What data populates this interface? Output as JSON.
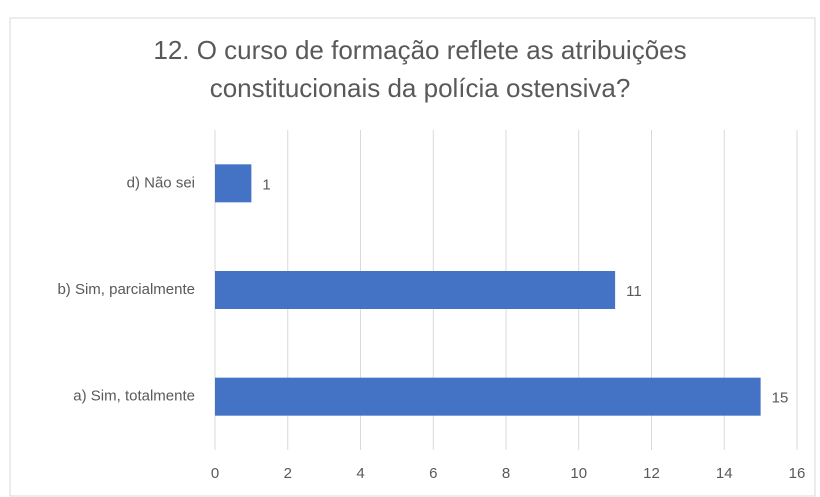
{
  "chart_data": {
    "type": "bar",
    "orientation": "horizontal",
    "title": [
      "12.  O curso de formação reflete as atribuições",
      "constitucionais da polícia ostensiva?"
    ],
    "categories": [
      "a) Sim, totalmente",
      "b) Sim, parcialmente",
      "d) Não sei"
    ],
    "values": [
      15,
      11,
      1
    ],
    "color": "#4472c4",
    "xlim": [
      0,
      16
    ],
    "xticks": [
      0,
      2,
      4,
      6,
      8,
      10,
      12,
      14,
      16
    ],
    "grid": true
  }
}
